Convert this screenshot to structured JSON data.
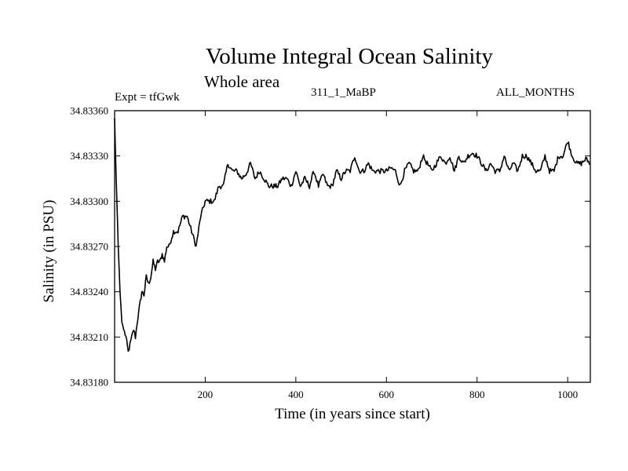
{
  "header": {
    "title": "Volume Integral Ocean Salinity",
    "subtitle": "Whole area",
    "experiment": "Expt = tfGwk",
    "run_id": "311_1_MaBP",
    "months": "ALL_MONTHS"
  },
  "chart_data": {
    "type": "line",
    "title": "Volume Integral Ocean Salinity",
    "subtitle": "Whole area",
    "xlabel": "Time (in years since start)",
    "ylabel": "Salinity (in PSU)",
    "xlim": [
      0,
      1050
    ],
    "ylim": [
      34.8318,
      34.8336
    ],
    "xticks": [
      200,
      400,
      600,
      800,
      1000
    ],
    "xtick_labels": [
      "200",
      "400",
      "600",
      "800",
      "1000"
    ],
    "yticks": [
      34.8318,
      34.8321,
      34.8324,
      34.8327,
      34.833,
      34.8333,
      34.8336
    ],
    "ytick_labels": [
      "34.83180",
      "34.83210",
      "34.83240",
      "34.83270",
      "34.83300",
      "34.83330",
      "34.83360"
    ],
    "grid": false,
    "series": [
      {
        "name": "salinity",
        "x": [
          0,
          2,
          5,
          8,
          12,
          16,
          20,
          25,
          30,
          34,
          38,
          42,
          46,
          50,
          55,
          60,
          65,
          70,
          75,
          80,
          85,
          90,
          95,
          100,
          105,
          110,
          115,
          120,
          130,
          140,
          150,
          160,
          170,
          180,
          190,
          200,
          210,
          220,
          230,
          240,
          250,
          260,
          270,
          280,
          290,
          300,
          310,
          320,
          330,
          340,
          350,
          360,
          370,
          380,
          390,
          400,
          410,
          420,
          430,
          440,
          450,
          460,
          470,
          480,
          490,
          500,
          510,
          520,
          530,
          540,
          550,
          560,
          570,
          580,
          590,
          600,
          610,
          620,
          630,
          640,
          650,
          660,
          670,
          680,
          690,
          700,
          710,
          720,
          730,
          740,
          750,
          760,
          770,
          780,
          790,
          800,
          810,
          820,
          830,
          840,
          850,
          860,
          870,
          880,
          890,
          900,
          910,
          920,
          930,
          940,
          950,
          960,
          970,
          980,
          990,
          1000,
          1010,
          1020,
          1030,
          1040,
          1050
        ],
        "y": [
          34.83355,
          34.8333,
          34.833,
          34.8327,
          34.8324,
          34.8322,
          34.83215,
          34.8321,
          34.832,
          34.83205,
          34.8321,
          34.83215,
          34.8321,
          34.8322,
          34.8323,
          34.8324,
          34.83238,
          34.8325,
          34.83245,
          34.8325,
          34.8326,
          34.83255,
          34.8326,
          34.8326,
          34.83265,
          34.8326,
          34.8327,
          34.8327,
          34.8328,
          34.8328,
          34.8329,
          34.8329,
          34.8328,
          34.8327,
          34.8329,
          34.833,
          34.833,
          34.833,
          34.8331,
          34.8331,
          34.83325,
          34.8332,
          34.8332,
          34.83315,
          34.83318,
          34.83325,
          34.83315,
          34.8332,
          34.83315,
          34.8331,
          34.8331,
          34.8331,
          34.83315,
          34.83315,
          34.8331,
          34.8332,
          34.8331,
          34.83315,
          34.8331,
          34.8332,
          34.8331,
          34.83318,
          34.8331,
          34.8331,
          34.8332,
          34.83315,
          34.8332,
          34.8332,
          34.8333,
          34.8332,
          34.8332,
          34.83325,
          34.8332,
          34.8332,
          34.8332,
          34.8332,
          34.83322,
          34.8332,
          34.8331,
          34.8332,
          34.83325,
          34.8332,
          34.8332,
          34.8333,
          34.83325,
          34.8332,
          34.83325,
          34.8333,
          34.83325,
          34.8333,
          34.8332,
          34.8333,
          34.83325,
          34.8333,
          34.83332,
          34.8333,
          34.83325,
          34.8332,
          34.83325,
          34.8332,
          34.8332,
          34.8333,
          34.8332,
          34.83325,
          34.8332,
          34.8333,
          34.8333,
          34.83325,
          34.8332,
          34.8332,
          34.8333,
          34.8332,
          34.8332,
          34.8333,
          34.8333,
          34.8334,
          34.8333,
          34.83325,
          34.83325,
          34.83328,
          34.83325
        ]
      }
    ]
  }
}
